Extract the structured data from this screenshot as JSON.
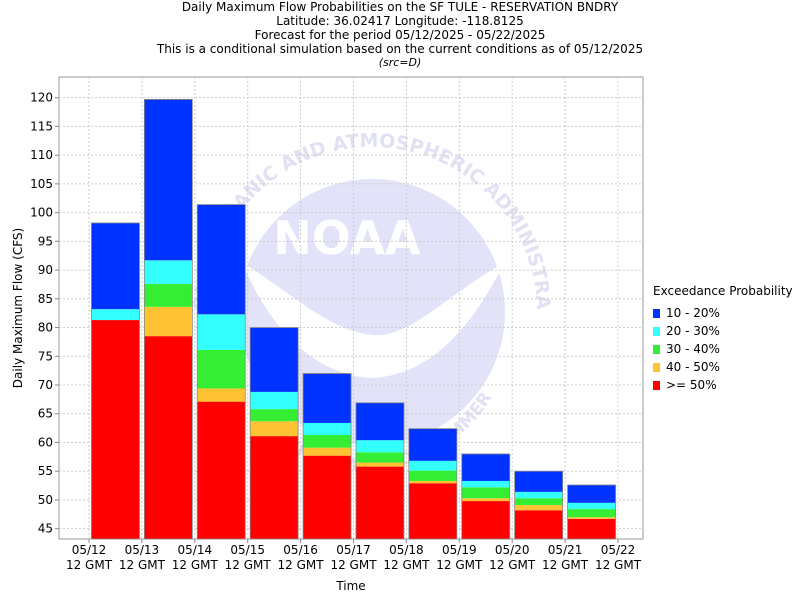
{
  "header": {
    "line1": "Daily Maximum Flow Probabilities on the SF TULE - RESERVATION BNDRY",
    "line2": "Latitude: 36.02417 Longitude: -118.8125",
    "line3": "Forecast for the period 05/12/2025 - 05/22/2025",
    "line4": "This is a conditional simulation based on the current conditions as of 05/12/2025",
    "line5": "(src=D)"
  },
  "watermark": {
    "logo_text": "NOAA",
    "ring_text": "NATIONAL OCEANIC AND ATMOSPHERIC ADMINISTRATION",
    "bottom_text": "U.S. DEPARTMENT OF COMMERCE"
  },
  "legend": {
    "title": "Exceedance Probability",
    "items": [
      {
        "label": "10 - 20%",
        "color": "#0033ff"
      },
      {
        "label": "20 - 30%",
        "color": "#33ffff"
      },
      {
        "label": "30 - 40%",
        "color": "#33ee33"
      },
      {
        "label": "40 - 50%",
        "color": "#ffc233"
      },
      {
        "label": ">= 50%",
        "color": "#ff0000"
      }
    ]
  },
  "chart_data": {
    "type": "bar",
    "stacked": true,
    "title": "Daily Maximum Flow Probabilities on the SF TULE - RESERVATION BNDRY",
    "xlabel": "Time",
    "ylabel": "Daily Maximum Flow (CFS)",
    "ylim": [
      43.2,
      123.6
    ],
    "yticks": [
      45,
      50,
      55,
      60,
      65,
      70,
      75,
      80,
      85,
      90,
      95,
      100,
      105,
      110,
      115,
      120
    ],
    "grid": true,
    "x_ticks": [
      [
        "05/12",
        "12 GMT"
      ],
      [
        "05/13",
        "12 GMT"
      ],
      [
        "05/14",
        "12 GMT"
      ],
      [
        "05/15",
        "12 GMT"
      ],
      [
        "05/16",
        "12 GMT"
      ],
      [
        "05/17",
        "12 GMT"
      ],
      [
        "05/18",
        "12 GMT"
      ],
      [
        "05/19",
        "12 GMT"
      ],
      [
        "05/20",
        "12 GMT"
      ],
      [
        "05/21",
        "12 GMT"
      ],
      [
        "05/22",
        "12 GMT"
      ]
    ],
    "bars": [
      {
        "top_50": 81.3,
        "top_40": 81.3,
        "top_30": 81.3,
        "top_20": 83.2,
        "top_10": 98.2
      },
      {
        "top_50": 78.5,
        "top_40": 83.6,
        "top_30": 87.6,
        "top_20": 91.7,
        "top_10": 119.7
      },
      {
        "top_50": 67.1,
        "top_40": 69.4,
        "top_30": 76.1,
        "top_20": 82.3,
        "top_10": 101.4
      },
      {
        "top_50": 61.1,
        "top_40": 63.7,
        "top_30": 65.8,
        "top_20": 68.8,
        "top_10": 80.0
      },
      {
        "top_50": 57.7,
        "top_40": 59.1,
        "top_30": 61.3,
        "top_20": 63.4,
        "top_10": 72.0
      },
      {
        "top_50": 55.8,
        "top_40": 56.5,
        "top_30": 58.3,
        "top_20": 60.4,
        "top_10": 66.9
      },
      {
        "top_50": 52.9,
        "top_40": 53.3,
        "top_30": 55.1,
        "top_20": 56.8,
        "top_10": 62.4
      },
      {
        "top_50": 49.8,
        "top_40": 50.3,
        "top_30": 52.2,
        "top_20": 53.3,
        "top_10": 58.0
      },
      {
        "top_50": 48.2,
        "top_40": 49.1,
        "top_30": 50.3,
        "top_20": 51.4,
        "top_10": 55.0
      },
      {
        "top_50": 46.7,
        "top_40": 47.0,
        "top_30": 48.4,
        "top_20": 49.5,
        "top_10": 52.6
      }
    ]
  }
}
